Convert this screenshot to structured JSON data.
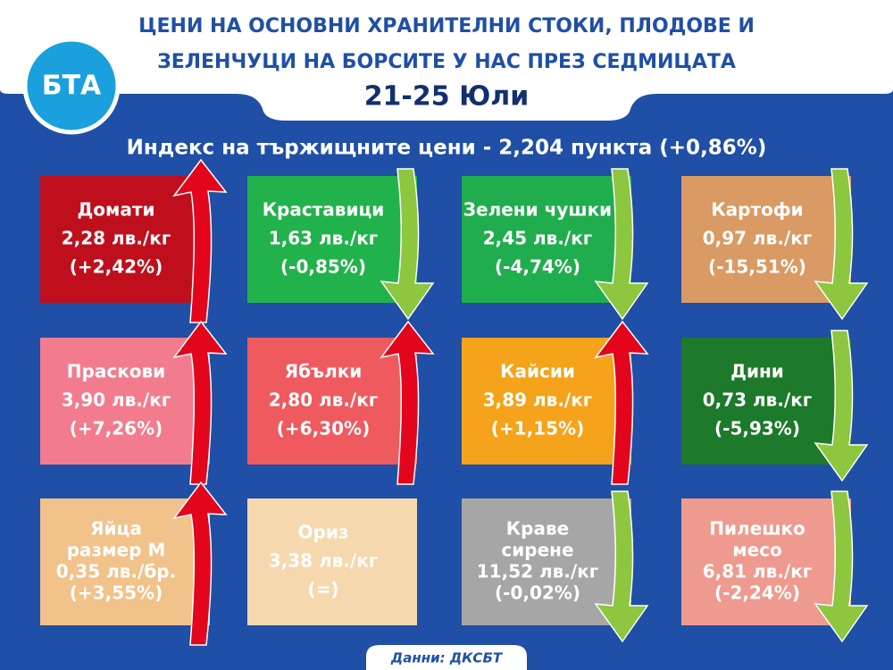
{
  "header": {
    "title_lines": [
      "ЦЕНИ НА ОСНОВНИ ХРАНИТЕЛНИ СТОКИ, ПЛОДОВЕ И",
      "ЗЕЛЕНЧУЦИ НА БОРСИТЕ У НАС ПРЕЗ СЕДМИЦАТА"
    ],
    "date": "21-25 Юли",
    "logo": "БТА"
  },
  "index": "Индекс на тържищните цени - 2,204 пункта (+0,86%)",
  "tiles": [
    {
      "lines": [
        "Домати",
        "2,28 лв./кг",
        "(+2,42%)"
      ],
      "color": "#c00f1c"
    },
    {
      "lines": [
        "Краставици",
        "1,63 лв./кг",
        "(-0,85%)"
      ],
      "color": "#22b24c"
    },
    {
      "lines": [
        "Зелени чушки",
        "2,45 лв./кг",
        "(-4,74%)"
      ],
      "color": "#20ad4e"
    },
    {
      "lines": [
        "Картофи",
        "0,97 лв./кг",
        "(-15,51%)"
      ],
      "color": "#d99a63"
    },
    {
      "lines": [
        "Праскови",
        "3,90 лв./кг",
        "(+7,26%)"
      ],
      "color": "#f27c8e"
    },
    {
      "lines": [
        "Ябълки",
        "2,80 лв./кг",
        "(+6,30%)"
      ],
      "color": "#ef5a5f"
    },
    {
      "lines": [
        "Кайсии",
        "3,89 лв./кг",
        "(+1,15%)"
      ],
      "color": "#f5a31a"
    },
    {
      "lines": [
        "Дини",
        "0,73 лв./кг",
        "(-5,93%)"
      ],
      "color": "#1d7a2a"
    },
    {
      "lines": [
        "Яйца",
        "размер М",
        "0,35 лв./бр.",
        "(+3,55%)"
      ],
      "color": "#f1c28a"
    },
    {
      "lines": [
        "Ориз",
        "3,38 лв./кг",
        "(=)"
      ],
      "color": "#f6d8ae"
    },
    {
      "lines": [
        "Краве",
        "сирене",
        "11,52 лв./кг",
        "(-0,02%)"
      ],
      "color": "#a6a6a6"
    },
    {
      "lines": [
        "Пилешко",
        "месо",
        "6,81 лв./кг",
        "(-2,24%)"
      ],
      "color": "#ef9a8f"
    }
  ],
  "source": "Данни: ДКСБТ"
}
